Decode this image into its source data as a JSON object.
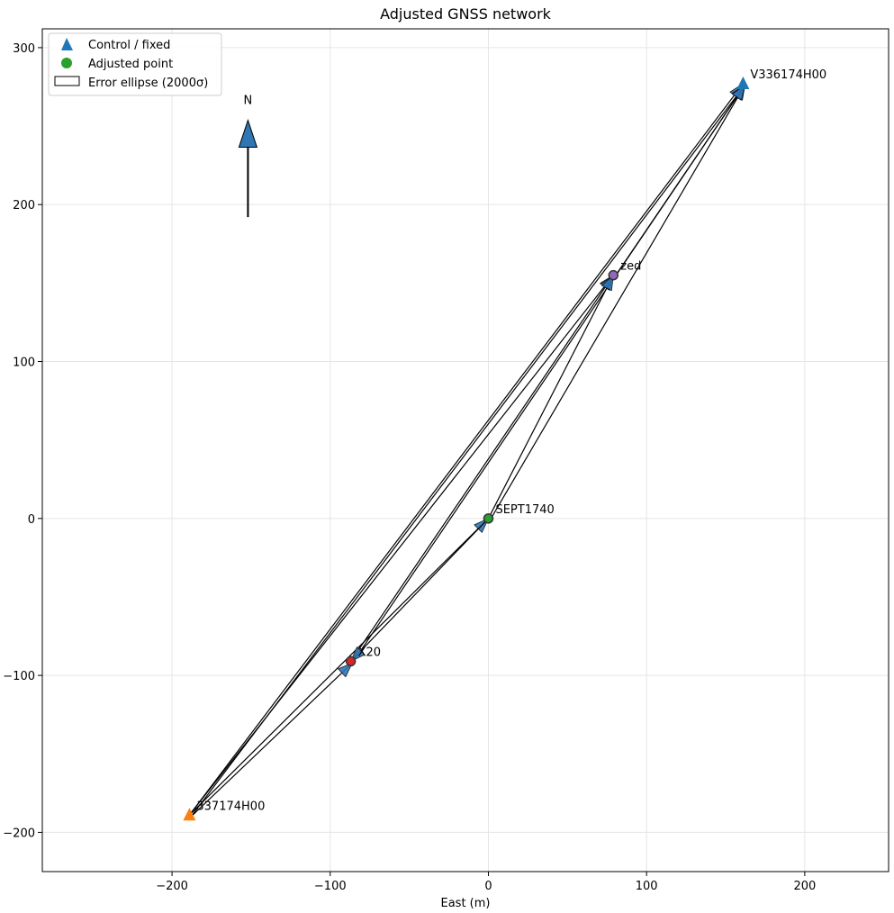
{
  "chart_data": {
    "type": "scatter",
    "title": "Adjusted GNSS network",
    "xlabel": "East (m)",
    "ylabel": "",
    "xlim": [
      -282,
      253
    ],
    "ylim": [
      -225,
      312
    ],
    "xticks": [
      -200,
      -100,
      0,
      100,
      200
    ],
    "yticks": [
      -200,
      -100,
      0,
      100,
      200,
      300
    ],
    "xtick_labels": [
      "−200",
      "−100",
      "0",
      "100",
      "200"
    ],
    "ytick_labels": [
      "−200",
      "−100",
      "0",
      "100",
      "200",
      "300"
    ],
    "grid": true,
    "legend": {
      "placement": "upper-left",
      "entries": [
        "Control / fixed",
        "Adjusted point",
        "Error ellipse (2000σ)"
      ]
    },
    "north_arrow": {
      "label": "N",
      "x": -152,
      "tip_y": 248,
      "base_y": 192
    },
    "points": [
      {
        "name": "V336174H00",
        "x": 161,
        "y": 277,
        "role": "control",
        "color": "#1f77b4",
        "label": "V336174H00"
      },
      {
        "name": "337174H00",
        "x": -189,
        "y": -189,
        "role": "control",
        "color": "#ff7f0e",
        "label": "337174H00"
      },
      {
        "name": "zed",
        "x": 79,
        "y": 155,
        "role": "adjusted",
        "color": "#9467bd",
        "label": "zed"
      },
      {
        "name": "SEPT1740",
        "x": 0,
        "y": 0,
        "role": "adjusted",
        "color": "#2ca02c",
        "label": "SEPT1740"
      },
      {
        "name": "X20",
        "x": -87,
        "y": -91,
        "role": "adjusted",
        "color": "#d62728",
        "label": "X20"
      }
    ],
    "baselines": [
      {
        "from": "337174H00",
        "to": "V336174H00",
        "dx": 350,
        "dy": 466
      },
      {
        "from": "337174H00",
        "to": "V336174H00",
        "dx": 350,
        "dy": 466
      },
      {
        "from": "337174H00",
        "to": "zed",
        "dx": 268,
        "dy": 344
      },
      {
        "from": "337174H00",
        "to": "X20",
        "dx": 102,
        "dy": 98
      },
      {
        "from": "337174H00",
        "to": "SEPT1740",
        "dx": 189,
        "dy": 189
      },
      {
        "from": "X20",
        "to": "V336174H00",
        "dx": 248,
        "dy": 368
      },
      {
        "from": "X20",
        "to": "zed",
        "dx": 166,
        "dy": 246
      },
      {
        "from": "SEPT1740",
        "to": "V336174H00",
        "dx": 161,
        "dy": 277
      },
      {
        "from": "SEPT1740",
        "to": "zed",
        "dx": 79,
        "dy": 155
      },
      {
        "from": "zed",
        "to": "V336174H00",
        "dx": 82,
        "dy": 122
      },
      {
        "from": "SEPT1740",
        "to": "X20",
        "dx": -87,
        "dy": -91
      }
    ],
    "colors": {
      "arrow_fill": "#2f76b5",
      "line": "#000000",
      "grid": "#e5e5e5"
    }
  }
}
